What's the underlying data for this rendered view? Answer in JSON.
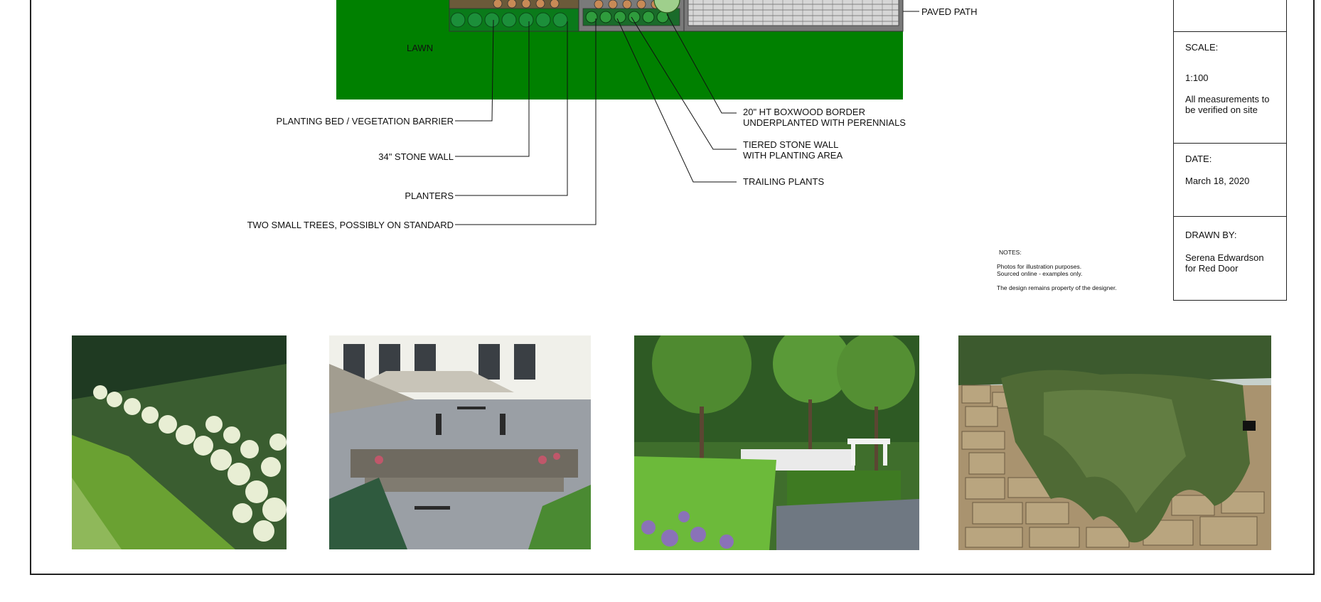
{
  "plan": {
    "lawn_label": "LAWN",
    "left_callouts": [
      "PLANTING BED / VEGETATION BARRIER",
      "34\" STONE WALL",
      "PLANTERS",
      "TWO SMALL TREES, POSSIBLY ON STANDARD"
    ],
    "right_callouts": {
      "paved_path": "PAVED PATH",
      "boxwood_line1": "20\" HT BOXWOOD BORDER",
      "boxwood_line2": "UNDERPLANTED WITH PERENNIALS",
      "tiered_line1": "TIERED STONE WALL",
      "tiered_line2": "WITH PLANTING AREA",
      "trailing": "TRAILING PLANTS"
    },
    "colors": {
      "lawn": "#008000",
      "bed": "#006b1a",
      "paving": "#d6d6d6"
    }
  },
  "title_block": {
    "scale_label": "SCALE:",
    "scale_value": "1:100",
    "scale_note": "All measurements to be verified on site",
    "date_label": "DATE:",
    "date_value": "March 18, 2020",
    "drawn_label": "DRAWN BY:",
    "drawn_line1": "Serena Edwardson",
    "drawn_line2": "for Red Door"
  },
  "notes": {
    "heading": "NOTES:",
    "line1": "Photos for illustration purposes.",
    "line2": "Sourced online - examples only.",
    "line3": "The design remains property of the designer."
  },
  "photos": [
    {
      "subject": "hydrangea hedge border along lawn"
    },
    {
      "subject": "stone patio with umbrellas and tiered stone walls"
    },
    {
      "subject": "standard trees with boxwood and lavender"
    },
    {
      "subject": "trailing plants cascading over dry stone wall"
    }
  ]
}
